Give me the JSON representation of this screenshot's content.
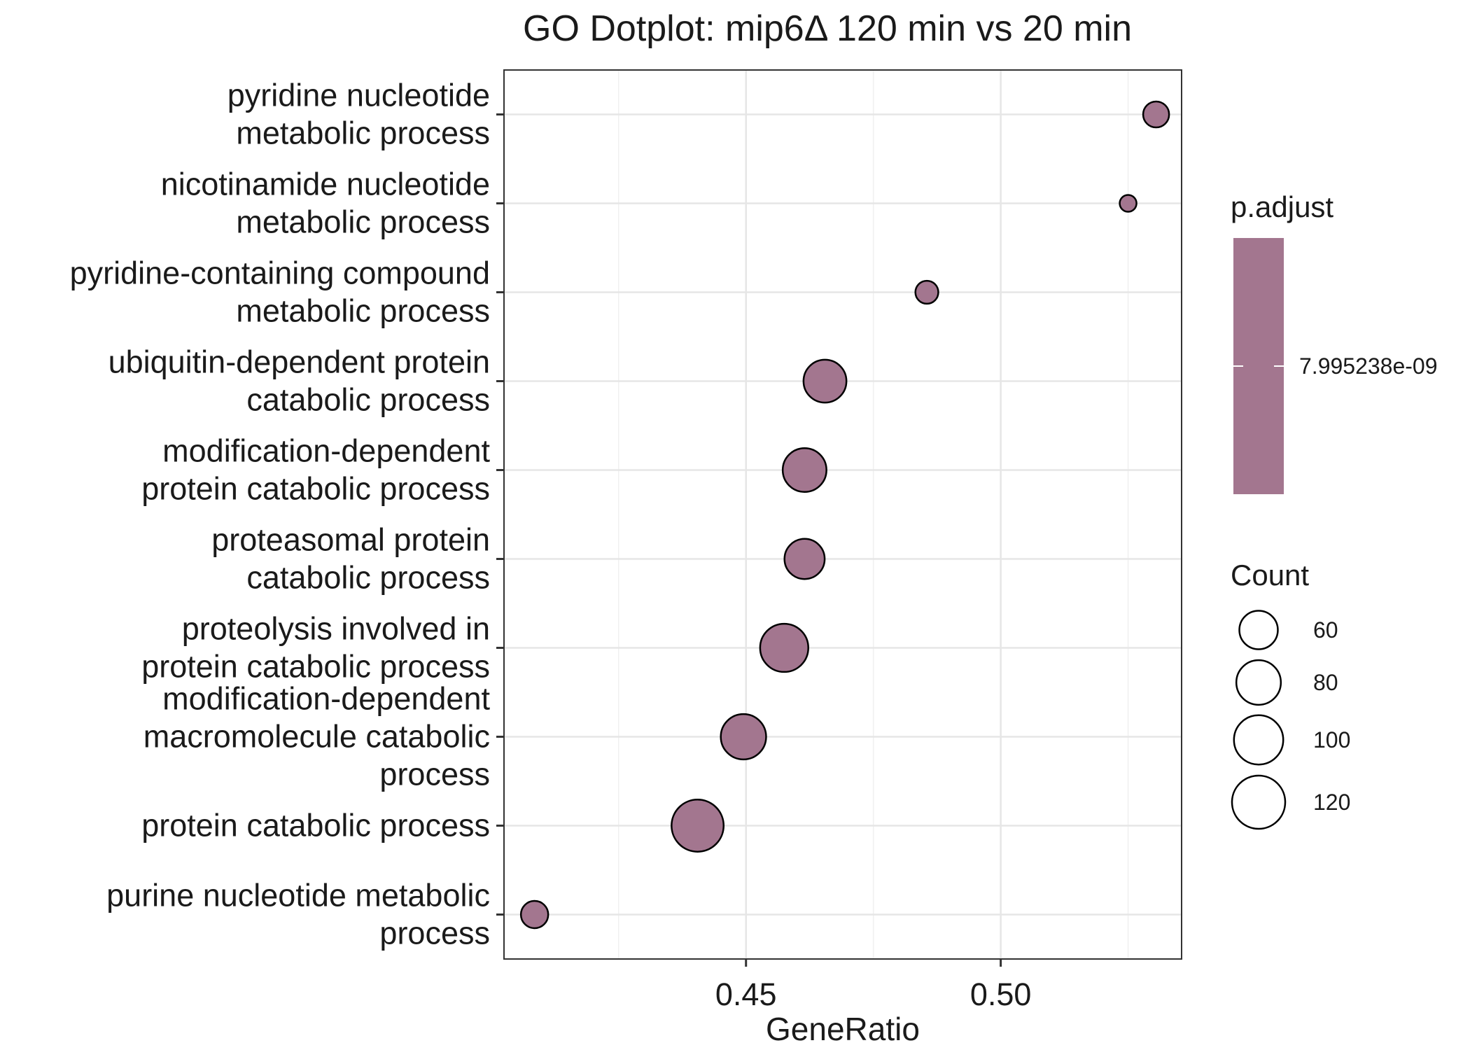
{
  "chart_data": {
    "type": "scatter",
    "title": "GO Dotplot: mip6Δ 120 min vs 20 min",
    "xlabel": "GeneRatio",
    "ylabel": "",
    "xlim": [
      0.4025,
      0.5355
    ],
    "x_ticks": [
      0.45,
      0.5
    ],
    "x_tick_labels": [
      "0.45",
      "0.50"
    ],
    "grid": true,
    "legend_position": "right",
    "categories": [
      "pyridine nucleotide metabolic process",
      "nicotinamide nucleotide metabolic process",
      "pyridine-containing compound metabolic process",
      "ubiquitin-dependent protein catabolic process",
      "modification-dependent protein catabolic process",
      "proteasomal protein catabolic process",
      "proteolysis involved in protein catabolic process",
      "modification-dependent macromolecule catabolic process",
      "protein catabolic process",
      "purine nucleotide metabolic process"
    ],
    "category_label_lines": [
      [
        "pyridine nucleotide",
        "metabolic process"
      ],
      [
        "nicotinamide nucleotide",
        "metabolic process"
      ],
      [
        "pyridine-containing compound",
        "metabolic process"
      ],
      [
        "ubiquitin-dependent protein",
        "catabolic process"
      ],
      [
        "modification-dependent",
        "protein catabolic process"
      ],
      [
        "proteasomal protein",
        "catabolic process"
      ],
      [
        "proteolysis involved in",
        "protein catabolic process"
      ],
      [
        "modification-dependent",
        "macromolecule catabolic",
        "process"
      ],
      [
        "protein catabolic process"
      ],
      [
        "purine nucleotide metabolic",
        "process"
      ]
    ],
    "series": [
      {
        "x": [
          0.5305,
          0.525,
          0.4855,
          0.4655,
          0.4615,
          0.4615,
          0.4575,
          0.4495,
          0.4405,
          0.4085
        ],
        "count": [
          34,
          24,
          30,
          74,
          77,
          65,
          95,
          83,
          114,
          36
        ],
        "p_adjust": [
          7.995238e-09,
          7.995238e-09,
          7.995238e-09,
          7.995238e-09,
          7.995238e-09,
          7.995238e-09,
          7.995238e-09,
          7.995238e-09,
          7.995238e-09,
          7.995238e-09
        ]
      }
    ],
    "point_color": "#a3768f",
    "legend": {
      "color_title": "p.adjust",
      "color_label": "7.995238e-09",
      "size_title": "Count",
      "size_breaks": [
        60,
        80,
        100,
        120
      ],
      "size_labels": [
        "60",
        "80",
        "100",
        "120"
      ]
    }
  }
}
